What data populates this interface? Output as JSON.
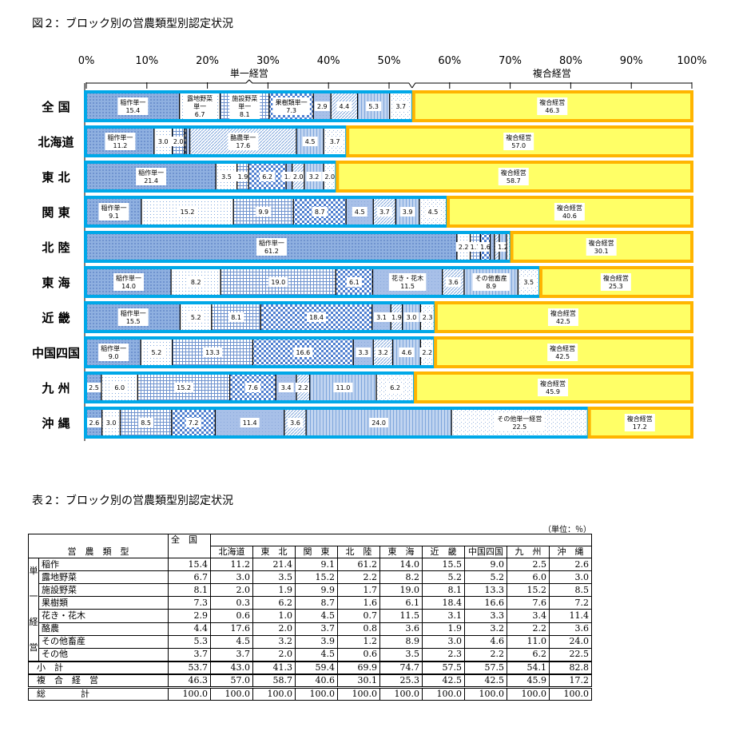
{
  "figure_title": "図２：ブロック別の営農類型別認定状況",
  "table_title": "表２：ブロック別の営農類型別認定状況",
  "chart_data": {
    "type": "bar",
    "stacked": true,
    "orientation": "horizontal",
    "title": "図２：ブロック別の営農類型別認定状況",
    "x_ticks": [
      "0%",
      "10%",
      "20%",
      "30%",
      "40%",
      "50%",
      "60%",
      "70%",
      "80%",
      "90%",
      "100%"
    ],
    "xlim": [
      0,
      100
    ],
    "group_labels": {
      "single": "単一経営",
      "composite": "複合経営"
    },
    "categories": [
      "全 国",
      "北海道",
      "東 北",
      "関 東",
      "北 陸",
      "東 海",
      "近 畿",
      "中国四国",
      "九 州",
      "沖 縄"
    ],
    "series_names": [
      "稲作",
      "露地野菜",
      "施設野菜",
      "果樹類",
      "花き・花木",
      "酪農",
      "その他畜産",
      "その他",
      "複合経営"
    ],
    "values": [
      [
        15.4,
        6.7,
        8.1,
        7.3,
        2.9,
        4.4,
        5.3,
        3.7,
        46.3
      ],
      [
        11.2,
        3.0,
        2.0,
        0.3,
        0.6,
        17.6,
        4.5,
        3.7,
        57.0
      ],
      [
        21.4,
        3.5,
        1.9,
        6.2,
        1.0,
        2.0,
        3.2,
        2.0,
        58.7
      ],
      [
        9.1,
        15.2,
        9.9,
        8.7,
        4.5,
        3.7,
        3.9,
        4.5,
        40.6
      ],
      [
        61.2,
        2.2,
        1.7,
        1.6,
        0.7,
        0.8,
        1.2,
        0.6,
        30.1
      ],
      [
        14.0,
        8.2,
        19.0,
        6.1,
        11.5,
        3.6,
        8.9,
        3.5,
        25.3
      ],
      [
        15.5,
        5.2,
        8.1,
        18.4,
        3.1,
        1.9,
        3.0,
        2.3,
        42.5
      ],
      [
        9.0,
        5.2,
        13.3,
        16.6,
        3.3,
        3.2,
        4.6,
        2.2,
        42.5
      ],
      [
        2.5,
        6.0,
        15.2,
        7.6,
        3.4,
        2.2,
        11.0,
        6.2,
        45.9
      ],
      [
        2.6,
        3.0,
        8.5,
        7.2,
        11.4,
        3.6,
        24.0,
        22.5,
        17.2
      ]
    ],
    "segment_labels": [
      [
        "稲作単一\n15.4",
        "露地野菜\n単一\n6.7",
        "施設野菜\n単一\n8.1",
        "果樹類単一\n7.3",
        "2.9",
        "4.4",
        "5.3",
        "3.7",
        "複合経営\n46.3"
      ],
      [
        "稲作単一\n11.2",
        "3.0",
        "2.0",
        "",
        "",
        "酪農単一\n17.6",
        "4.5",
        "3.7",
        "複合経営\n57.0"
      ],
      [
        "稲作単一\n21.4",
        "3.5",
        "1.9",
        "6.2",
        "1.0",
        "2.0",
        "3.2",
        "2.0",
        "複合経営\n58.7"
      ],
      [
        "稲作単一\n9.1",
        "15.2",
        "9.9",
        "8.7",
        "4.5",
        "3.7",
        "3.9",
        "4.5",
        "複合経営\n40.6"
      ],
      [
        "稲作単一\n61.2",
        "2.2",
        "1.7",
        "1.6",
        "",
        "",
        "1.2",
        "",
        "複合経営\n30.1"
      ],
      [
        "稲作単一\n14.0",
        "8.2",
        "19.0",
        "6.1",
        "花き・花木\n11.5",
        "3.6",
        "その他畜産\n8.9",
        "3.5",
        "複合経営\n25.3"
      ],
      [
        "稲作単一\n15.5",
        "5.2",
        "8.1",
        "18.4",
        "3.1",
        "1.9",
        "3.0",
        "2.3",
        "複合経営\n42.5"
      ],
      [
        "稲作単一\n9.0",
        "5.2",
        "13.3",
        "16.6",
        "3.3",
        "3.2",
        "4.6",
        "2.2",
        "複合経営\n42.5"
      ],
      [
        "2.5",
        "6.0",
        "15.2",
        "7.6",
        "3.4",
        "2.2",
        "11.0",
        "6.2",
        "複合経営\n45.9"
      ],
      [
        "2.6",
        "3.0",
        "8.5",
        "7.2",
        "11.4",
        "3.6",
        "24.0",
        "その他単一経営\n22.5",
        "複合経営\n17.2"
      ]
    ],
    "colors": {
      "single_border": "#00a8e8",
      "composite_border": "#ffb400",
      "composite_fill": "#ffff66",
      "pattern_blue": "#7fa6dc"
    }
  },
  "table": {
    "unit": "（単位：％）",
    "header_type": "営　農　類　型",
    "header_national": "全　国",
    "regions": [
      "北海道",
      "東　北",
      "関　東",
      "北　陸",
      "東　海",
      "近　畿",
      "中国四国",
      "九　州",
      "沖　縄"
    ],
    "group_label_chars": [
      "単",
      "一",
      "経",
      "営"
    ],
    "rows": [
      {
        "label": "稲作",
        "values": [
          "15.4",
          "11.2",
          "21.4",
          "9.1",
          "61.2",
          "14.0",
          "15.5",
          "9.0",
          "2.5",
          "2.6"
        ]
      },
      {
        "label": "露地野菜",
        "values": [
          "6.7",
          "3.0",
          "3.5",
          "15.2",
          "2.2",
          "8.2",
          "5.2",
          "5.2",
          "6.0",
          "3.0"
        ]
      },
      {
        "label": "施設野菜",
        "values": [
          "8.1",
          "2.0",
          "1.9",
          "9.9",
          "1.7",
          "19.0",
          "8.1",
          "13.3",
          "15.2",
          "8.5"
        ]
      },
      {
        "label": "果樹類",
        "values": [
          "7.3",
          "0.3",
          "6.2",
          "8.7",
          "1.6",
          "6.1",
          "18.4",
          "16.6",
          "7.6",
          "7.2"
        ]
      },
      {
        "label": "花き・花木",
        "values": [
          "2.9",
          "0.6",
          "1.0",
          "4.5",
          "0.7",
          "11.5",
          "3.1",
          "3.3",
          "3.4",
          "11.4"
        ]
      },
      {
        "label": "酪農",
        "values": [
          "4.4",
          "17.6",
          "2.0",
          "3.7",
          "0.8",
          "3.6",
          "1.9",
          "3.2",
          "2.2",
          "3.6"
        ]
      },
      {
        "label": "その他畜産",
        "values": [
          "5.3",
          "4.5",
          "3.2",
          "3.9",
          "1.2",
          "8.9",
          "3.0",
          "4.6",
          "11.0",
          "24.0"
        ]
      },
      {
        "label": "その他",
        "values": [
          "3.7",
          "3.7",
          "2.0",
          "4.5",
          "0.6",
          "3.5",
          "2.3",
          "2.2",
          "6.2",
          "22.5"
        ]
      }
    ],
    "subtotal": {
      "label": "小　計",
      "values": [
        "53.7",
        "43.0",
        "41.3",
        "59.4",
        "69.9",
        "74.7",
        "57.5",
        "57.5",
        "54.1",
        "82.8"
      ]
    },
    "composite": {
      "label": "複　合　経　営",
      "values": [
        "46.3",
        "57.0",
        "58.7",
        "40.6",
        "30.1",
        "25.3",
        "42.5",
        "42.5",
        "45.9",
        "17.2"
      ]
    },
    "total": {
      "label": "総　　　　計",
      "values": [
        "100.0",
        "100.0",
        "100.0",
        "100.0",
        "100.0",
        "100.0",
        "100.0",
        "100.0",
        "100.0",
        "100.0"
      ]
    }
  }
}
